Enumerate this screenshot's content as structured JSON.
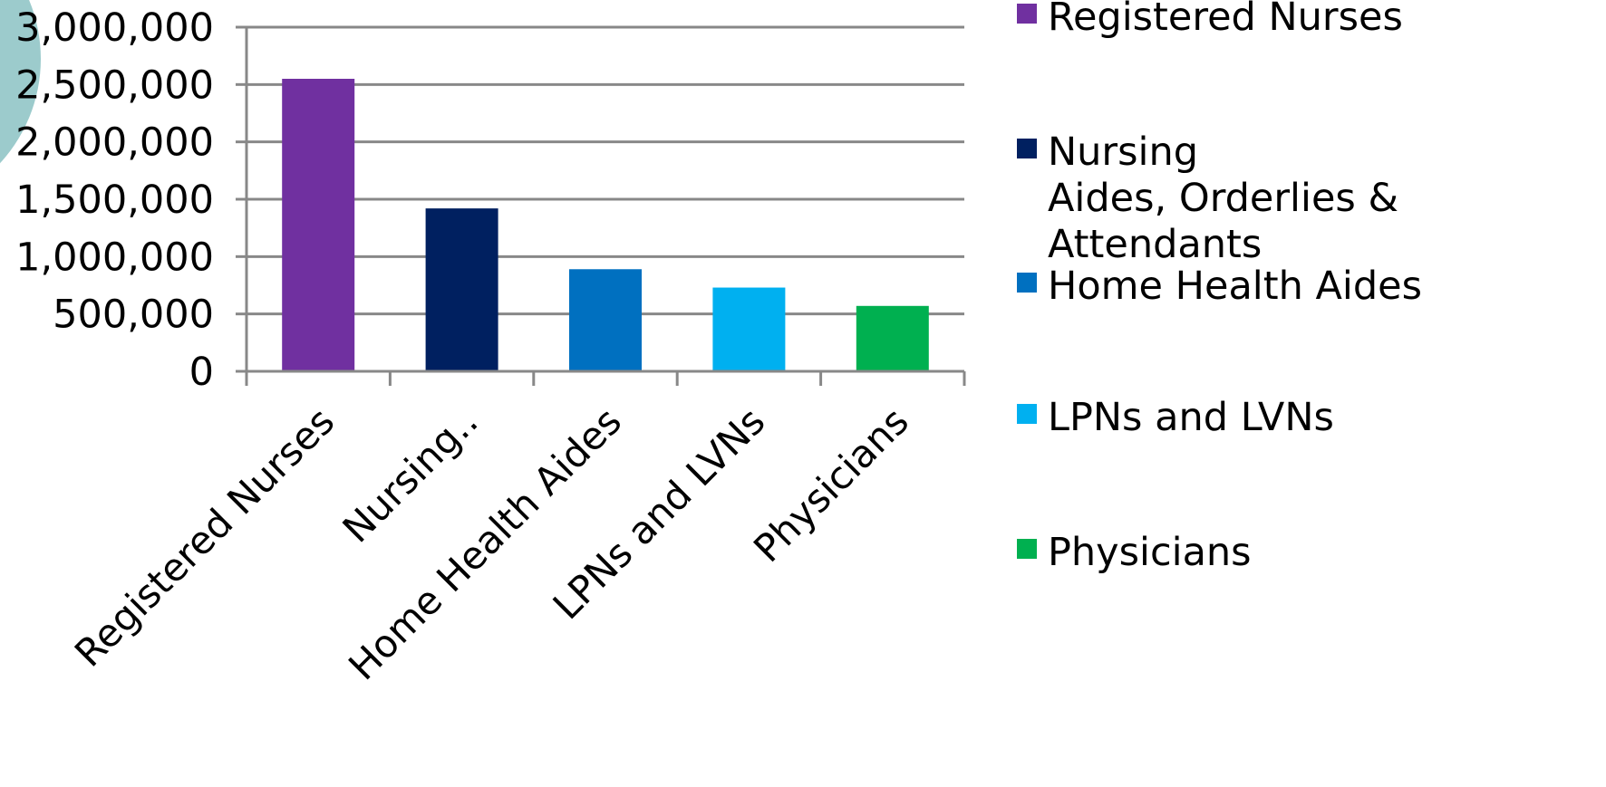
{
  "chart_data": {
    "type": "bar",
    "title": "",
    "xlabel": "",
    "ylabel": "",
    "ylim": [
      0,
      3000000
    ],
    "yticks": [
      "0",
      "500,000",
      "1,000,000",
      "1,500,000",
      "2,000,000",
      "2,500,000",
      "3,000,000"
    ],
    "grid": true,
    "legend_position": "right",
    "categories": [
      "Registered Nurses",
      "Nursing..",
      "Home Health Aides",
      "LPNs and LVNs",
      "Physicians"
    ],
    "values": [
      2550000,
      1420000,
      890000,
      730000,
      570000
    ],
    "colors": [
      "#7030A0",
      "#002060",
      "#0070C0",
      "#00B0F0",
      "#00B050"
    ],
    "legend": [
      {
        "lines": [
          "Registered Nurses"
        ],
        "color": "#7030A0"
      },
      {
        "lines": [
          "Nursing",
          "Aides, Orderlies &",
          "Attendants"
        ],
        "color": "#002060"
      },
      {
        "lines": [
          "Home Health Aides"
        ],
        "color": "#0070C0"
      },
      {
        "lines": [
          "LPNs and LVNs"
        ],
        "color": "#00B0F0"
      },
      {
        "lines": [
          "Physicians"
        ],
        "color": "#00B050"
      }
    ]
  },
  "decor": {
    "circle_color": "#9CCBCC",
    "axis_color": "#888888",
    "grid_color": "#888888"
  }
}
